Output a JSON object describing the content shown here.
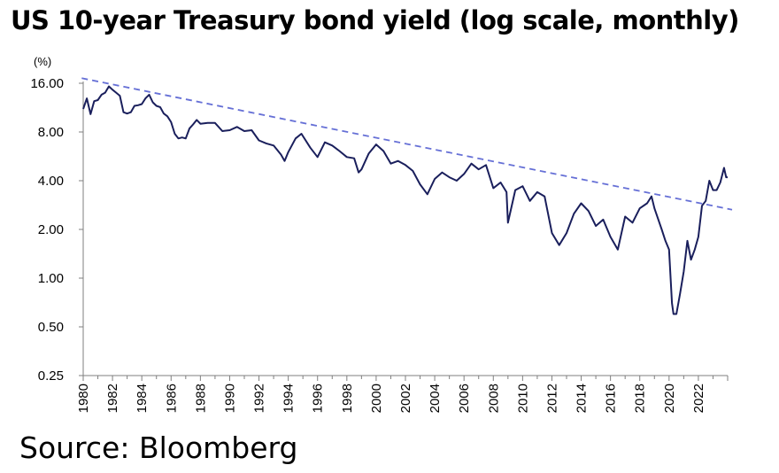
{
  "title": "US 10-year Treasury bond yield (log scale, monthly)",
  "source": "Source: Bloomberg",
  "chart_data": {
    "type": "line",
    "title": "US 10-year Treasury bond yield (log scale, monthly)",
    "ylabel": "(%)",
    "xlabel": "",
    "yscale": "log",
    "ylim": [
      0.25,
      16
    ],
    "xlim": [
      1980,
      2024
    ],
    "yticks": [
      "16.00",
      "8.00",
      "4.00",
      "2.00",
      "1.00",
      "0.50",
      "0.25"
    ],
    "ytick_values": [
      16,
      8,
      4,
      2,
      1,
      0.5,
      0.25
    ],
    "xticks": [
      "1980",
      "1982",
      "1984",
      "1986",
      "1988",
      "1990",
      "1992",
      "1994",
      "1996",
      "1998",
      "2000",
      "2002",
      "2004",
      "2006",
      "2008",
      "2010",
      "2012",
      "2014",
      "2016",
      "2018",
      "2020",
      "2022"
    ],
    "grid": false,
    "legend": "none",
    "series": [
      {
        "style": "solid",
        "color": "#1a1f5c",
        "x": [
          1980.0,
          1980.25,
          1980.5,
          1980.75,
          1981.0,
          1981.25,
          1981.5,
          1981.75,
          1982.0,
          1982.25,
          1982.5,
          1982.75,
          1983.0,
          1983.25,
          1983.5,
          1983.75,
          1984.0,
          1984.25,
          1984.5,
          1984.75,
          1985.0,
          1985.25,
          1985.5,
          1985.75,
          1986.0,
          1986.25,
          1986.5,
          1986.75,
          1987.0,
          1987.25,
          1987.5,
          1987.75,
          1988.0,
          1988.5,
          1989.0,
          1989.5,
          1990.0,
          1990.5,
          1991.0,
          1991.5,
          1992.0,
          1992.5,
          1993.0,
          1993.5,
          1993.75,
          1994.0,
          1994.5,
          1994.9,
          1995.5,
          1996.0,
          1996.5,
          1997.0,
          1997.5,
          1998.0,
          1998.5,
          1998.8,
          1999.0,
          1999.5,
          2000.0,
          2000.5,
          2001.0,
          2001.5,
          2002.0,
          2002.5,
          2003.0,
          2003.5,
          2004.0,
          2004.5,
          2005.0,
          2005.5,
          2006.0,
          2006.5,
          2007.0,
          2007.5,
          2008.0,
          2008.5,
          2008.9,
          2009.0,
          2009.5,
          2010.0,
          2010.5,
          2011.0,
          2011.5,
          2012.0,
          2012.5,
          2013.0,
          2013.5,
          2014.0,
          2014.5,
          2015.0,
          2015.5,
          2016.0,
          2016.5,
          2017.0,
          2017.5,
          2018.0,
          2018.5,
          2018.8,
          2019.0,
          2019.5,
          2019.75,
          2020.0,
          2020.2,
          2020.3,
          2020.5,
          2020.75,
          2021.0,
          2021.25,
          2021.5,
          2021.75,
          2022.0,
          2022.25,
          2022.5,
          2022.75,
          2023.0,
          2023.25,
          2023.5,
          2023.75,
          2023.9,
          2024.0
        ],
        "values": [
          11.1,
          12.9,
          10.3,
          12.4,
          12.6,
          13.6,
          14.0,
          15.3,
          14.6,
          14.0,
          13.4,
          10.6,
          10.4,
          10.6,
          11.6,
          11.7,
          11.9,
          12.9,
          13.6,
          12.2,
          11.6,
          11.4,
          10.4,
          10.0,
          9.2,
          7.8,
          7.3,
          7.4,
          7.3,
          8.4,
          8.9,
          9.5,
          9.0,
          9.1,
          9.1,
          8.1,
          8.2,
          8.6,
          8.1,
          8.2,
          7.1,
          6.8,
          6.6,
          5.8,
          5.3,
          6.0,
          7.3,
          7.8,
          6.4,
          5.6,
          6.9,
          6.6,
          6.1,
          5.6,
          5.5,
          4.5,
          4.7,
          5.9,
          6.7,
          6.1,
          5.1,
          5.3,
          5.0,
          4.6,
          3.8,
          3.3,
          4.1,
          4.5,
          4.2,
          4.0,
          4.4,
          5.1,
          4.7,
          5.0,
          3.6,
          3.9,
          3.4,
          2.2,
          3.5,
          3.7,
          3.0,
          3.4,
          3.2,
          1.9,
          1.6,
          1.9,
          2.5,
          2.9,
          2.6,
          2.1,
          2.3,
          1.8,
          1.5,
          2.4,
          2.2,
          2.7,
          2.9,
          3.2,
          2.7,
          2.0,
          1.7,
          1.5,
          0.7,
          0.6,
          0.6,
          0.8,
          1.1,
          1.7,
          1.3,
          1.5,
          1.8,
          2.8,
          3.0,
          4.0,
          3.5,
          3.5,
          3.9,
          4.8,
          4.2,
          4.2
        ]
      },
      {
        "style": "dashed",
        "color": "#6670d6",
        "x": [
          1979.9,
          2024.3
        ],
        "values": [
          17.2,
          2.65
        ]
      }
    ]
  }
}
